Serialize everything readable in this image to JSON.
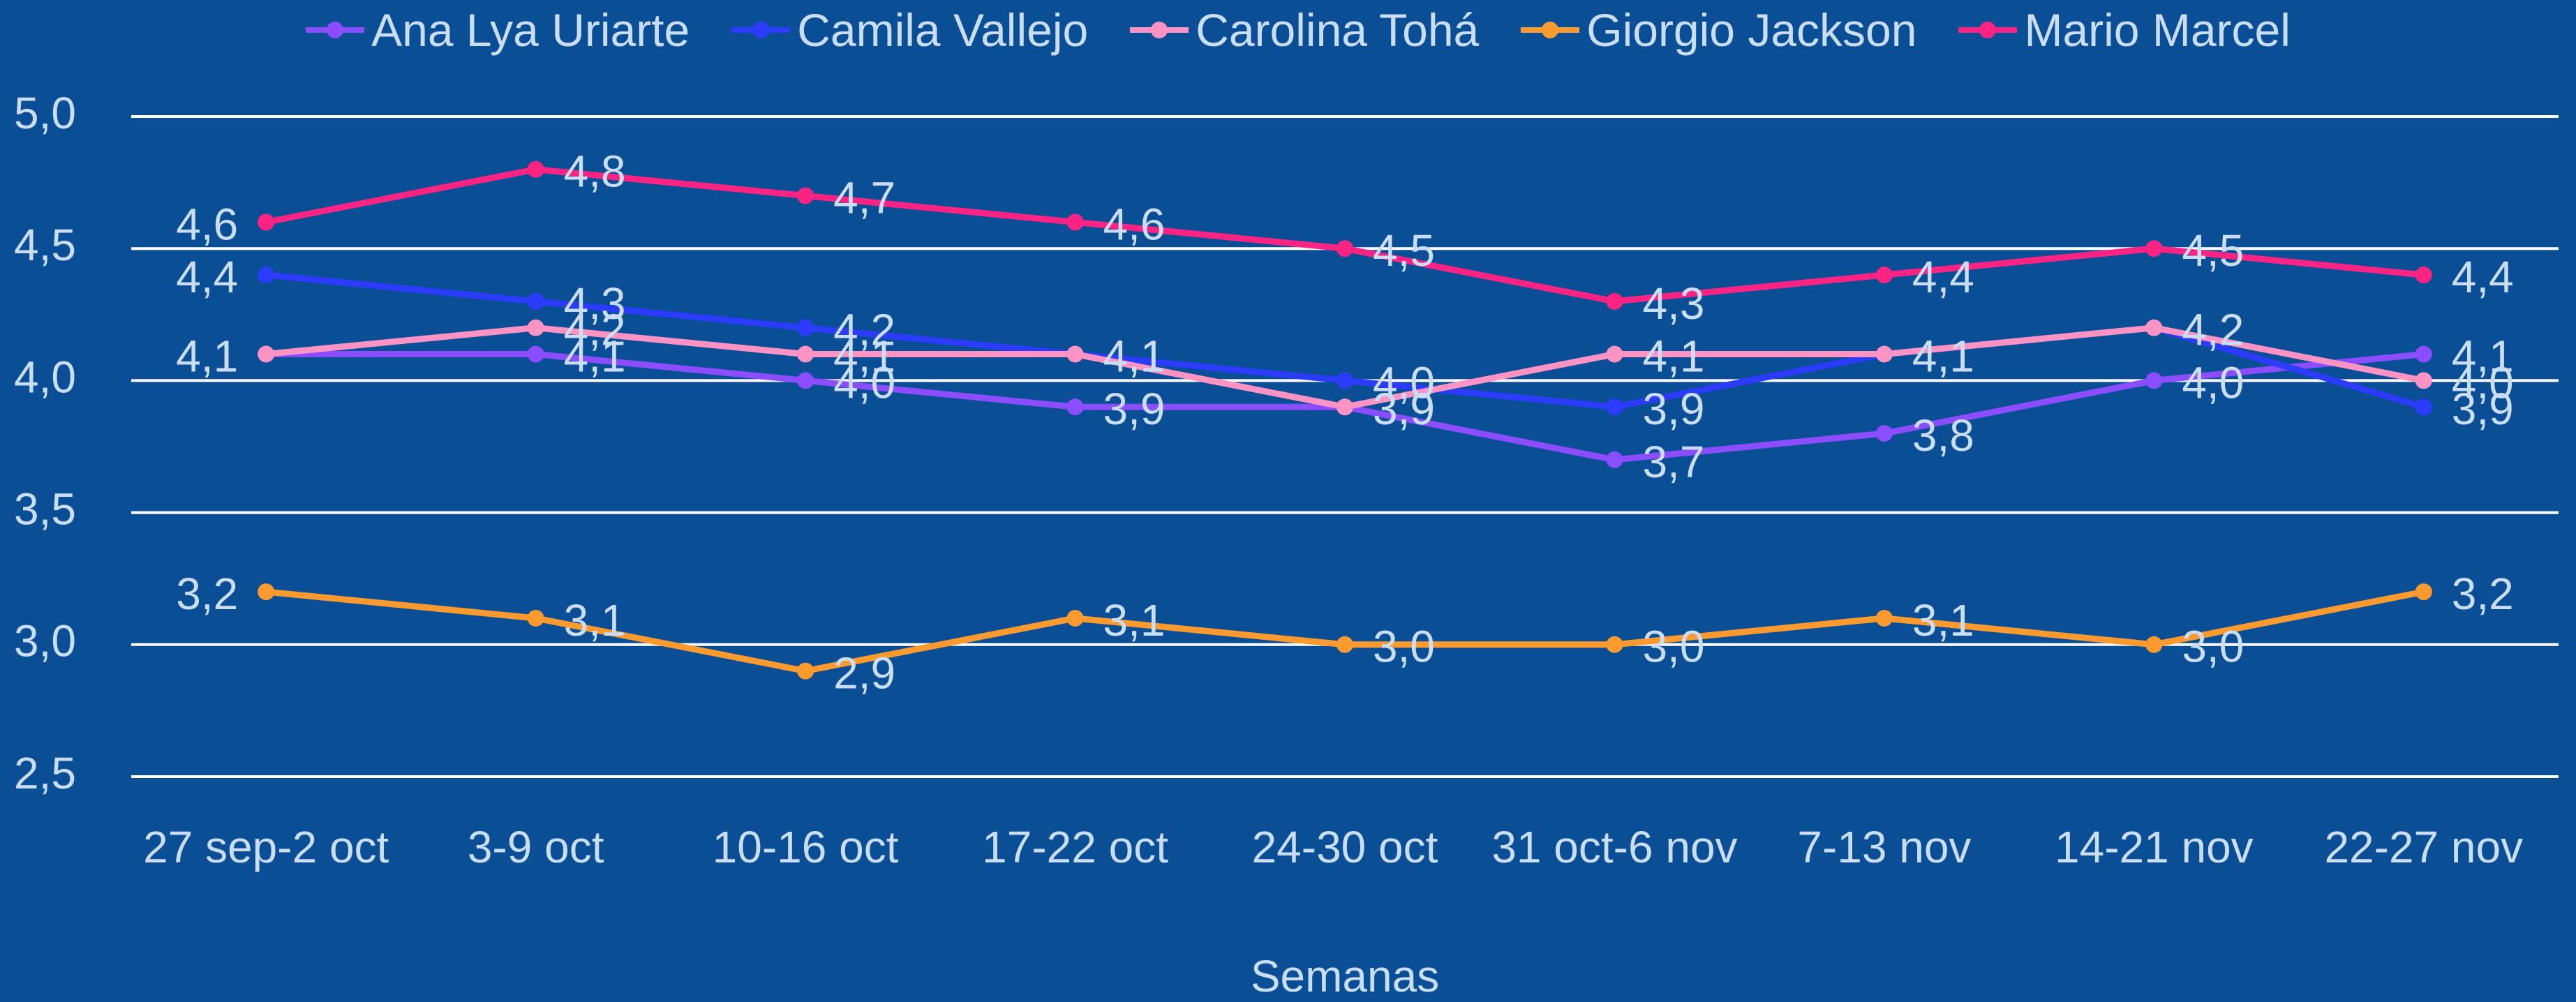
{
  "chart_data": {
    "type": "line",
    "categories": [
      "27 sep-2 oct",
      "3-9 oct",
      "10-16 oct",
      "17-22 oct",
      "24-30 oct",
      "31 oct-6 nov",
      "7-13 nov",
      "14-21 nov",
      "22-27 nov"
    ],
    "x_label": "Semanas",
    "series": [
      {
        "name": "Ana Lya Uriarte",
        "color": "#8a4dff",
        "values": [
          4.1,
          4.1,
          4.0,
          3.9,
          3.9,
          3.7,
          3.8,
          4.0,
          4.1
        ],
        "value_labels": [
          "4,1",
          "4,1",
          "4,0",
          "3,9",
          "3,9",
          "3,7",
          "3,8",
          "4,0",
          "4,1"
        ]
      },
      {
        "name": "Camila Vallejo",
        "color": "#2b3cff",
        "values": [
          4.4,
          4.3,
          4.2,
          4.1,
          4.0,
          3.9,
          4.1,
          4.2,
          3.9
        ],
        "value_labels": [
          "4,4",
          "4,3",
          "4,2",
          "4,1",
          "4,0",
          "3,9",
          "4,1",
          "4,2",
          "3,9"
        ]
      },
      {
        "name": "Carolina Tohá",
        "color": "#ff93c4",
        "values": [
          4.1,
          4.2,
          4.1,
          4.1,
          3.9,
          4.1,
          4.1,
          4.2,
          4.0
        ],
        "value_labels": [
          "4,1",
          "4,2",
          "4,1",
          "4,1",
          "3,9",
          "4,1",
          "4,1",
          "4,2",
          "4,0"
        ]
      },
      {
        "name": "Giorgio Jackson",
        "color": "#ff9a2e",
        "values": [
          3.2,
          3.1,
          2.9,
          3.1,
          3.0,
          3.0,
          3.1,
          3.0,
          3.2
        ],
        "value_labels": [
          "3,2",
          "3,1",
          "2,9",
          "3,1",
          "3,0",
          "3,0",
          "3,1",
          "3,0",
          "3,2"
        ]
      },
      {
        "name": "Mario Marcel",
        "color": "#ff2383",
        "values": [
          4.6,
          4.8,
          4.7,
          4.6,
          4.5,
          4.3,
          4.4,
          4.5,
          4.4
        ],
        "value_labels": [
          "4,6",
          "4,8",
          "4,7",
          "4,6",
          "4,5",
          "4,3",
          "4,4",
          "4,5",
          "4,4"
        ]
      }
    ],
    "ylim": [
      2.5,
      5.0
    ],
    "yticks": [
      {
        "value": 2.5,
        "label": "2,5"
      },
      {
        "value": 3.0,
        "label": "3,0"
      },
      {
        "value": 3.5,
        "label": "3,5"
      },
      {
        "value": 4.0,
        "label": "4,0"
      },
      {
        "value": 4.5,
        "label": "4,5"
      },
      {
        "value": 5.0,
        "label": "5,0"
      }
    ],
    "grid": true,
    "legend": "top"
  }
}
